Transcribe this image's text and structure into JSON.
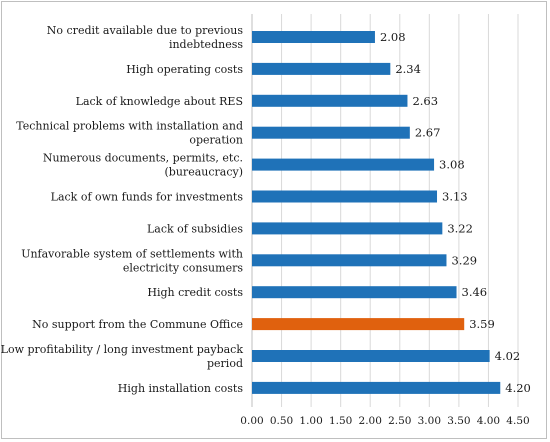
{
  "chart_data": {
    "type": "bar",
    "orientation": "horizontal",
    "categories": [
      "No credit available due to previous indebtedness",
      "High operating costs",
      "Lack of knowledge about RES",
      "Technical problems with installation and operation",
      "Numerous documents, permits, etc. (bureaucracy)",
      "Lack of own funds for investments",
      "Lack of subsidies",
      "Unfavorable system of settlements with electricity consumers",
      "High credit costs",
      "No support from the Commune Office",
      "Low profitability / long investment payback period",
      "High installation costs"
    ],
    "category_lines": [
      [
        "No credit available due to previous",
        "indebtedness"
      ],
      [
        "High operating costs"
      ],
      [
        "Lack of knowledge about RES"
      ],
      [
        "Technical problems with installation and",
        "operation"
      ],
      [
        "Numerous documents, permits, etc.",
        "(bureaucracy)"
      ],
      [
        "Lack of own funds for investments"
      ],
      [
        "Lack of subsidies"
      ],
      [
        "Unfavorable system of settlements with",
        "electricity consumers"
      ],
      [
        "High credit costs"
      ],
      [
        "No support from the Commune Office"
      ],
      [
        "Low profitability / long investment payback",
        "period"
      ],
      [
        "High installation costs"
      ]
    ],
    "values": [
      2.08,
      2.34,
      2.63,
      2.67,
      3.08,
      3.13,
      3.22,
      3.29,
      3.46,
      3.59,
      4.02,
      4.2
    ],
    "value_labels": [
      "2.08",
      "2.34",
      "2.63",
      "2.67",
      "3.08",
      "3.13",
      "3.22",
      "3.29",
      "3.46",
      "3.59",
      "4.02",
      "4.20"
    ],
    "highlight_index": 9,
    "xlim": [
      0,
      4.5
    ],
    "x_ticks": [
      "0.00",
      "0.50",
      "1.00",
      "1.50",
      "2.00",
      "2.50",
      "3.00",
      "3.50",
      "4.00",
      "4.50"
    ],
    "grid": true,
    "title": "",
    "xlabel": "",
    "ylabel": "",
    "colors": {
      "bar": "#1f72b8",
      "highlight": "#e0610e",
      "grid": "#d9d9d9",
      "axis": "#bfbfbf"
    }
  }
}
